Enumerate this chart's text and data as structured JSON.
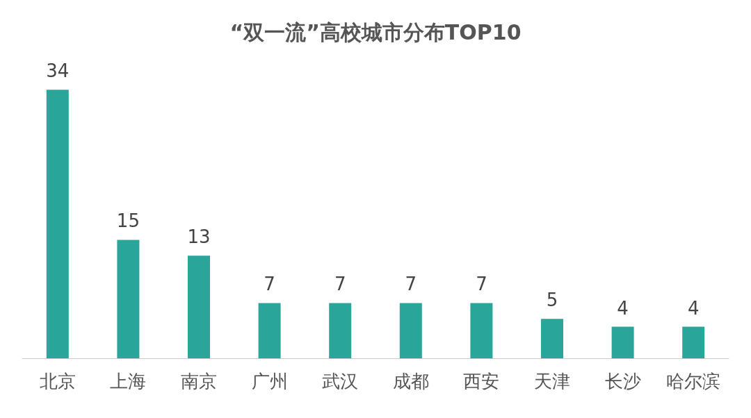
{
  "chart_data": {
    "type": "bar",
    "title": "“双一流”高校城市分布TOP10",
    "categories": [
      "北京",
      "上海",
      "南京",
      "广州",
      "武汉",
      "成都",
      "西安",
      "天津",
      "长沙",
      "哈尔滨"
    ],
    "values": [
      34,
      15,
      13,
      7,
      7,
      7,
      7,
      5,
      4,
      4
    ],
    "color": "#2aa59a",
    "data_labels": true
  }
}
